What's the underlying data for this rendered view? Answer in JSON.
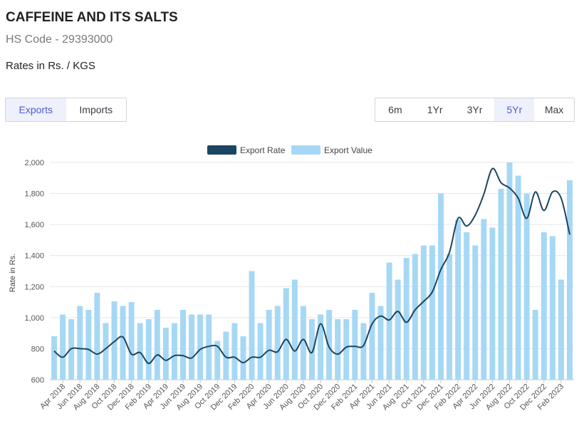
{
  "header": {
    "title": "CAFFEINE AND ITS SALTS",
    "hs_code": "HS Code - 29393000",
    "rates_unit": "Rates in Rs. / KGS"
  },
  "trade_toggle": {
    "options": [
      "Exports",
      "Imports"
    ],
    "active": "Exports"
  },
  "range_toggle": {
    "options": [
      "6m",
      "1Yr",
      "3Yr",
      "5Yr",
      "Max"
    ],
    "active": "5Yr"
  },
  "colors": {
    "accent": "#4e5bd8",
    "line": "#1b4560",
    "bar": "#a6d8f5"
  },
  "chart_data": {
    "type": "bar+line",
    "ylabel": "Rate in Rs.",
    "ylim": [
      600,
      2000
    ],
    "yticks": [
      600,
      800,
      1000,
      1200,
      1400,
      1600,
      1800,
      2000
    ],
    "legend": {
      "placement": "top-center",
      "entries": [
        "Export Rate",
        "Export Value"
      ]
    },
    "grid": true,
    "categories": [
      "Mar 2018",
      "Apr 2018",
      "May 2018",
      "Jun 2018",
      "Jul 2018",
      "Aug 2018",
      "Sep 2018",
      "Oct 2018",
      "Nov 2018",
      "Dec 2018",
      "Jan 2019",
      "Feb 2019",
      "Mar 2019",
      "Apr 2019",
      "May 2019",
      "Jun 2019",
      "Jul 2019",
      "Aug 2019",
      "Sep 2019",
      "Oct 2019",
      "Nov 2019",
      "Dec 2019",
      "Jan 2020",
      "Feb 2020",
      "Mar 2020",
      "Apr 2020",
      "May 2020",
      "Jun 2020",
      "Jul 2020",
      "Aug 2020",
      "Sep 2020",
      "Oct 2020",
      "Nov 2020",
      "Dec 2020",
      "Jan 2021",
      "Feb 2021",
      "Mar 2021",
      "Apr 2021",
      "May 2021",
      "Jun 2021",
      "Jul 2021",
      "Aug 2021",
      "Sep 2021",
      "Oct 2021",
      "Nov 2021",
      "Dec 2021",
      "Jan 2022",
      "Feb 2022",
      "Mar 2022",
      "Apr 2022",
      "May 2022",
      "Jun 2022",
      "Jul 2022",
      "Aug 2022",
      "Sep 2022",
      "Oct 2022",
      "Nov 2022",
      "Dec 2022",
      "Jan 2023",
      "Feb 2023",
      "Mar 2023"
    ],
    "xtick_labels": [
      "Apr 2018",
      "Jun 2018",
      "Aug 2018",
      "Oct 2018",
      "Dec 2018",
      "Feb 2019",
      "Apr 2019",
      "Jun 2019",
      "Aug 2019",
      "Oct 2019",
      "Dec 2019",
      "Feb 2020",
      "Apr 2020",
      "Jun 2020",
      "Aug 2020",
      "Oct 2020",
      "Dec 2020",
      "Feb 2021",
      "Apr 2021",
      "Jun 2021",
      "Aug 2021",
      "Oct 2021",
      "Dec 2021",
      "Feb 2022",
      "Apr 2022",
      "Jun 2022",
      "Aug 2022",
      "Oct 2022",
      "Dec 2022",
      "Feb 2023"
    ],
    "series": [
      {
        "name": "Export Value",
        "kind": "bar",
        "values": [
          880,
          1020,
          990,
          1075,
          1050,
          1160,
          965,
          1105,
          1075,
          1100,
          965,
          990,
          1050,
          935,
          965,
          1050,
          1020,
          1020,
          1020,
          850,
          910,
          965,
          880,
          1300,
          965,
          1050,
          1075,
          1190,
          1245,
          1075,
          990,
          1020,
          1050,
          990,
          990,
          1050,
          965,
          1160,
          1075,
          1355,
          1245,
          1385,
          1410,
          1465,
          1465,
          1800,
          1410,
          1630,
          1550,
          1465,
          1635,
          1580,
          1830,
          2000,
          1915,
          1800,
          1050,
          1550,
          1525,
          1245,
          1885
        ]
      },
      {
        "name": "Export Rate",
        "kind": "line",
        "values": [
          785,
          745,
          800,
          800,
          795,
          765,
          800,
          845,
          875,
          765,
          775,
          705,
          760,
          725,
          755,
          755,
          740,
          795,
          815,
          815,
          745,
          745,
          710,
          745,
          745,
          790,
          780,
          860,
          785,
          860,
          775,
          960,
          810,
          765,
          810,
          815,
          820,
          960,
          1010,
          985,
          1040,
          970,
          1050,
          1105,
          1165,
          1310,
          1420,
          1640,
          1590,
          1660,
          1795,
          1960,
          1870,
          1835,
          1770,
          1640,
          1810,
          1690,
          1810,
          1770,
          1535
        ]
      }
    ]
  }
}
